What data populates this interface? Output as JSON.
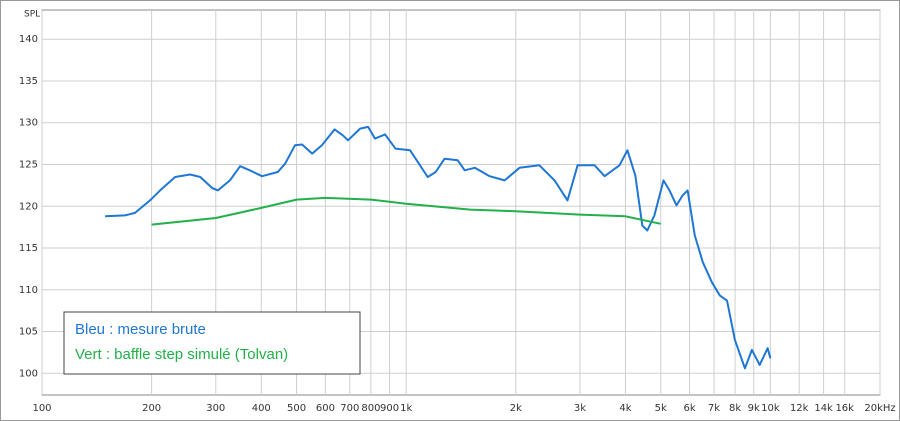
{
  "chart_data": {
    "type": "line",
    "y_label": "SPL",
    "x_scale": "log",
    "grid": true,
    "xlim": [
      100,
      20000
    ],
    "ylim": [
      97.4,
      143.5
    ],
    "xticks": [
      100,
      200,
      300,
      400,
      500,
      600,
      700,
      800,
      900,
      {
        "value": 1000,
        "label": "1k"
      },
      {
        "value": 2000,
        "label": "2k"
      },
      {
        "value": 3000,
        "label": "3k"
      },
      {
        "value": 4000,
        "label": "4k"
      },
      {
        "value": 5000,
        "label": "5k"
      },
      {
        "value": 6000,
        "label": "6k"
      },
      {
        "value": 7000,
        "label": "7k"
      },
      {
        "value": 8000,
        "label": "8k"
      },
      {
        "value": 9000,
        "label": "9k"
      },
      {
        "value": 10000,
        "label": "10k"
      },
      {
        "value": 12000,
        "label": "12k"
      },
      {
        "value": 14000,
        "label": "14k"
      },
      {
        "value": 16000,
        "label": "16k"
      },
      {
        "value": 20000,
        "label": "20kHz"
      }
    ],
    "yticks": [
      100,
      105,
      110,
      115,
      120,
      125,
      130,
      135,
      140
    ],
    "annotations": [
      "Bleu : mesure brute",
      "Vert : baffle step simulé (Tolvan)"
    ],
    "series": [
      {
        "color": "#1f77d4",
        "x": [
          149,
          169,
          180,
          198,
          211,
          232,
          255,
          272,
          293,
          304,
          328,
          350,
          372,
          402,
          444,
          465,
          495,
          518,
          552,
          587,
          636,
          670,
          692,
          747,
          786,
          821,
          875,
          934,
          1025,
          1091,
          1146,
          1205,
          1275,
          1385,
          1448,
          1543,
          1695,
          1863,
          2047,
          2322,
          2555,
          2773,
          2955,
          3292,
          3506,
          3852,
          4050,
          4258,
          4450,
          4594,
          4804,
          5088,
          5284,
          5524,
          5742,
          5925,
          6200,
          6525,
          6910,
          7266,
          7600,
          7990,
          8510,
          8900,
          9350,
          9825,
          10000
        ],
        "values": [
          118.8,
          118.9,
          119.2,
          120.7,
          121.9,
          123.5,
          123.8,
          123.5,
          122.2,
          121.9,
          123.1,
          124.8,
          124.3,
          123.6,
          124.1,
          125.1,
          127.3,
          127.4,
          126.3,
          127.3,
          129.2,
          128.5,
          127.9,
          129.3,
          129.5,
          128.1,
          128.6,
          126.9,
          126.7,
          124.9,
          123.5,
          124.1,
          125.7,
          125.5,
          124.3,
          124.6,
          123.6,
          123.1,
          124.6,
          124.9,
          123.1,
          120.7,
          124.9,
          124.9,
          123.6,
          124.9,
          126.7,
          123.7,
          117.7,
          117.1,
          118.9,
          123.1,
          121.9,
          120.1,
          121.3,
          121.9,
          116.5,
          113.3,
          110.9,
          109.3,
          108.7,
          104.0,
          100.6,
          102.8,
          101.0,
          103.0,
          101.8
        ]
      },
      {
        "color": "#22b04a",
        "x": [
          200,
          300,
          400,
          500,
          600,
          800,
          1000,
          1500,
          2000,
          3000,
          4000,
          5000
        ],
        "values": [
          117.8,
          118.6,
          119.8,
          120.8,
          121.0,
          120.8,
          120.3,
          119.6,
          119.4,
          119.0,
          118.8,
          117.9
        ]
      }
    ]
  }
}
